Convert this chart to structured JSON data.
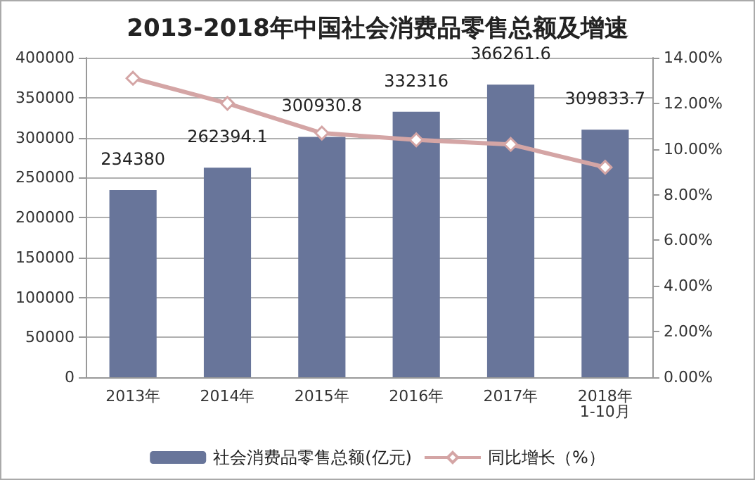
{
  "chart_data": {
    "type": "bar",
    "title": "2013-2018年中国社会消费品零售总额及增速",
    "categories": [
      "2013年",
      "2014年",
      "2015年",
      "2016年",
      "2017年",
      "2018年\n1-10月"
    ],
    "series": [
      {
        "name": "社会消费品零售总额(亿元)",
        "color": "#68759a",
        "values": [
          234380,
          262394.1,
          300930.8,
          332316,
          366261.6,
          309833.7
        ],
        "data_labels": true
      },
      {
        "name": "同比增长（%）",
        "type": "line",
        "axis": "y2",
        "color": "#d4a5a5",
        "marker": "diamond",
        "values": [
          13.1,
          12.0,
          10.7,
          10.4,
          10.2,
          9.2
        ]
      }
    ],
    "ylim": [
      0,
      400000
    ],
    "yticks": [
      0,
      50000,
      100000,
      150000,
      200000,
      250000,
      300000,
      350000,
      400000
    ],
    "y2lim": [
      0,
      14
    ],
    "y2ticks": [
      {
        "value": 0,
        "label": "0.00%"
      },
      {
        "value": 2,
        "label": "2.00%"
      },
      {
        "value": 4,
        "label": "4.00%"
      },
      {
        "value": 6,
        "label": "6.00%"
      },
      {
        "value": 8,
        "label": "8.00%"
      },
      {
        "value": 10,
        "label": "10.00%"
      },
      {
        "value": 12,
        "label": "12.00%"
      },
      {
        "value": 14,
        "label": "14.00%"
      }
    ],
    "grid": "y",
    "legend": "bottom"
  }
}
